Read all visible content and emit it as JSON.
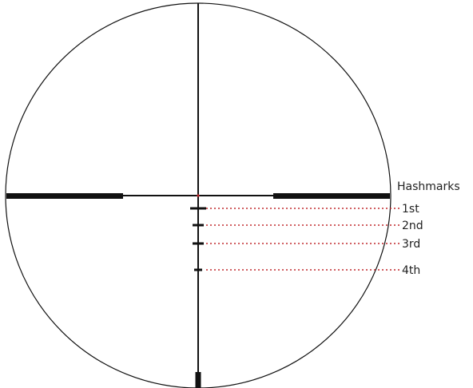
{
  "diagram": {
    "legend_title": "Hashmarks",
    "hashmarks": [
      {
        "label": "1st"
      },
      {
        "label": "2nd"
      },
      {
        "label": "3rd"
      },
      {
        "label": "4th"
      }
    ],
    "colors": {
      "reticle": "#111111",
      "leader_lines": "#c0282d",
      "center_dot": "#c0282d"
    }
  }
}
